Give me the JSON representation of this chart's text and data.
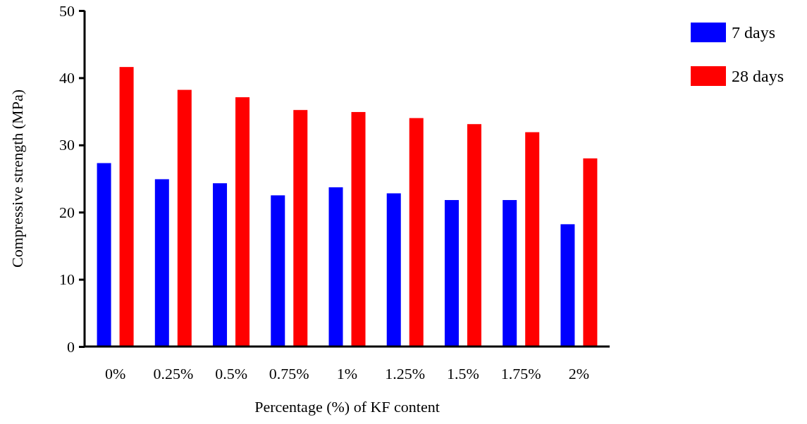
{
  "chart_data": {
    "type": "bar",
    "xlabel": "Percentage (%) of KF content",
    "ylabel": "Compressive strength (MPa)",
    "categories": [
      "0%",
      "0.25%",
      "0.5%",
      "0.75%",
      "1%",
      "1.25%",
      "1.5%",
      "1.75%",
      "2%"
    ],
    "series": [
      {
        "name": "7 days",
        "color": "#0000ff",
        "values": [
          27.3,
          24.9,
          24.3,
          22.5,
          23.7,
          22.8,
          21.8,
          21.8,
          18.2
        ]
      },
      {
        "name": "28 days",
        "color": "#ff0000",
        "values": [
          41.6,
          38.2,
          37.1,
          35.2,
          34.9,
          34.0,
          33.1,
          31.9,
          28.0
        ]
      }
    ],
    "ylim": [
      0,
      50
    ],
    "yticks": [
      0,
      10,
      20,
      30,
      40,
      50
    ],
    "grid": false,
    "legend": "top right"
  }
}
